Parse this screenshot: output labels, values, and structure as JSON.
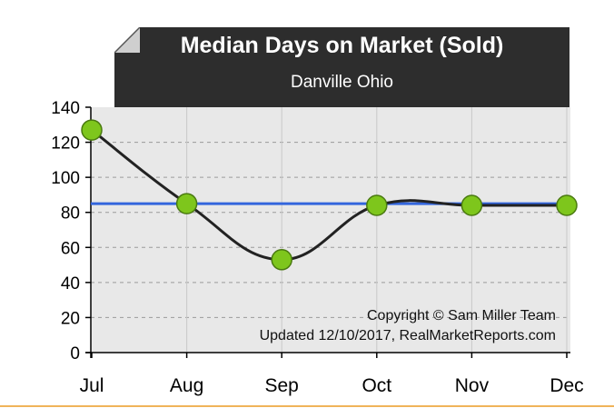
{
  "chart_data": {
    "type": "line",
    "title": "Median Days on Market (Sold)",
    "subtitle": "Danville Ohio",
    "categories": [
      "Jul",
      "Aug",
      "Sep",
      "Oct",
      "Nov",
      "Dec"
    ],
    "series": [
      {
        "values": [
          127,
          85,
          53,
          84,
          84,
          84
        ]
      }
    ],
    "reference_line": {
      "value": 85,
      "color": "#3366dd"
    },
    "ylim": [
      0,
      140
    ],
    "yticks": [
      0,
      20,
      40,
      60,
      80,
      100,
      120,
      140
    ],
    "grid": true,
    "annotations": [
      "Copyright © Sam Miller Team",
      "Updated 12/10/2017, RealMarketReports.com"
    ],
    "colors": {
      "line": "#222222",
      "marker_fill": "#7ec61c",
      "marker_stroke": "#4a7a10",
      "plot_bg": "#e8e8e8",
      "title_bg": "#2d2d2d",
      "bottom_rule": "#f0b45a"
    }
  }
}
